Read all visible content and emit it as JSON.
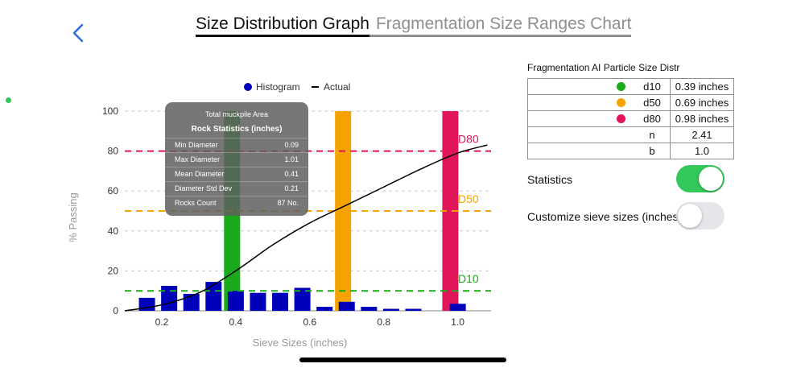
{
  "tabs": [
    {
      "label": "Size Distribution Graph",
      "active": true
    },
    {
      "label": "Fragmentation Size Ranges Chart",
      "active": false
    }
  ],
  "tooltip": {
    "header": "Total muckpile Area",
    "title": "Rock Statistics (inches)",
    "rows": [
      {
        "label": "Min Diameter",
        "value": "0.09"
      },
      {
        "label": "Max Diameter",
        "value": "1.01"
      },
      {
        "label": "Mean Diameter",
        "value": "0.41"
      },
      {
        "label": "Diameter Std Dev",
        "value": "0.21"
      },
      {
        "label": "Rocks Count",
        "value": "87 No."
      }
    ]
  },
  "results": {
    "title": "Fragmentation AI Particle Size Distr",
    "rows": [
      {
        "key": "d10",
        "value": "0.39 inches",
        "color": "#1aaa1a"
      },
      {
        "key": "d50",
        "value": "0.69 inches",
        "color": "#f5a300"
      },
      {
        "key": "d80",
        "value": "0.98 inches",
        "color": "#e0155a"
      },
      {
        "key": "n",
        "value": "2.41"
      },
      {
        "key": "b",
        "value": "1.0"
      }
    ]
  },
  "settings": {
    "statistics_label": "Statistics",
    "statistics_on": true,
    "sieve_label": "Customize sieve sizes (inches)",
    "sieve_on": false,
    "accent": "#34c759"
  },
  "chart_data": {
    "type": "bar",
    "xlabel": "Sieve Sizes (inches)",
    "ylabel": "% Passing",
    "xlim": [
      0.1,
      1.09
    ],
    "ylim": [
      0,
      100
    ],
    "xticks": [
      "0.2",
      "0.4",
      "0.6",
      "0.8",
      "1.0"
    ],
    "yticks": [
      "0",
      "20",
      "40",
      "60",
      "80",
      "100"
    ],
    "legend": [
      {
        "name": "Histogram",
        "color": "#0000bb"
      },
      {
        "name": "Actual",
        "color": "#000000"
      }
    ],
    "legend_position": "top-center",
    "histogram": {
      "x": [
        0.16,
        0.22,
        0.28,
        0.34,
        0.4,
        0.46,
        0.52,
        0.58,
        0.64,
        0.7,
        0.76,
        0.82,
        0.88,
        0.94,
        1.0
      ],
      "values": [
        6.5,
        12.5,
        8.5,
        14.5,
        10,
        9,
        9,
        11.5,
        2,
        4.5,
        2,
        1,
        1,
        0,
        3.5
      ]
    },
    "actual": {
      "x": [
        0.1,
        0.2,
        0.3,
        0.4,
        0.5,
        0.6,
        0.7,
        0.8,
        0.9,
        1.0,
        1.08
      ],
      "y": [
        0,
        3,
        9,
        20,
        33,
        44,
        53,
        62,
        71,
        79,
        83
      ]
    },
    "thresholds": [
      {
        "name": "d10",
        "label": "D10",
        "x": 0.39,
        "y": 10,
        "color": "#1aaa1a"
      },
      {
        "name": "d50",
        "label": "D50",
        "x": 0.69,
        "y": 50,
        "color": "#f5a300"
      },
      {
        "name": "d80",
        "label": "D80",
        "x": 0.98,
        "y": 80,
        "color": "#e0155a"
      }
    ]
  }
}
